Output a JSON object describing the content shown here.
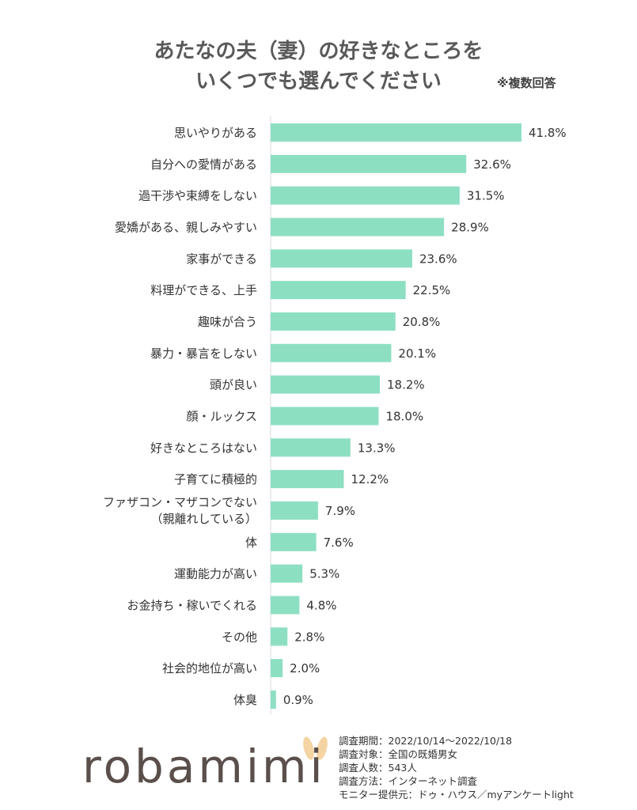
{
  "header": {
    "title_line1": "あたなの夫（妻）の好きなところを",
    "title_line2": "いくつでも選んでください",
    "note": "※複数回答"
  },
  "chart_data": {
    "type": "bar",
    "orientation": "horizontal",
    "bar_color": "#8ddfc1",
    "axis_color": "#d9d9d9",
    "xlim": [
      0,
      42
    ],
    "grid": false,
    "categories": [
      "思いやりがある",
      "自分への愛情がある",
      "過干渉や束縛をしない",
      "愛嬌がある、親しみやすい",
      "家事ができる",
      "料理ができる、上手",
      "趣味が合う",
      "暴力・暴言をしない",
      "頭が良い",
      "顔・ルックス",
      "好きなところはない",
      "子育てに積極的",
      "ファザコン・マザコンでない\n（親離れしている）",
      "体",
      "運動能力が高い",
      "お金持ち・稼いでくれる",
      "その他",
      "社会的地位が高い",
      "体臭"
    ],
    "values": [
      41.8,
      32.6,
      31.5,
      28.9,
      23.6,
      22.5,
      20.8,
      20.1,
      18.2,
      18.0,
      13.3,
      12.2,
      7.9,
      7.6,
      5.3,
      4.8,
      2.8,
      2.0,
      0.9
    ],
    "value_labels": [
      "41.8%",
      "32.6%",
      "31.5%",
      "28.9%",
      "23.6%",
      "22.5%",
      "20.8%",
      "20.1%",
      "18.2%",
      "18.0%",
      "13.3%",
      "12.2%",
      "7.9%",
      "7.6%",
      "5.3%",
      "4.8%",
      "2.8%",
      "2.0%",
      "0.9%"
    ]
  },
  "logo": {
    "text": "robamimi",
    "ear_color": "#f5d4a3"
  },
  "survey": [
    "調査期間：2022/10/14～2022/10/18",
    "調査対象：全国の既婚男女",
    "調査人数：543人",
    "調査方法：インターネット調査",
    "モニター提供元：ドゥ・ハウス／myアンケートlight"
  ]
}
